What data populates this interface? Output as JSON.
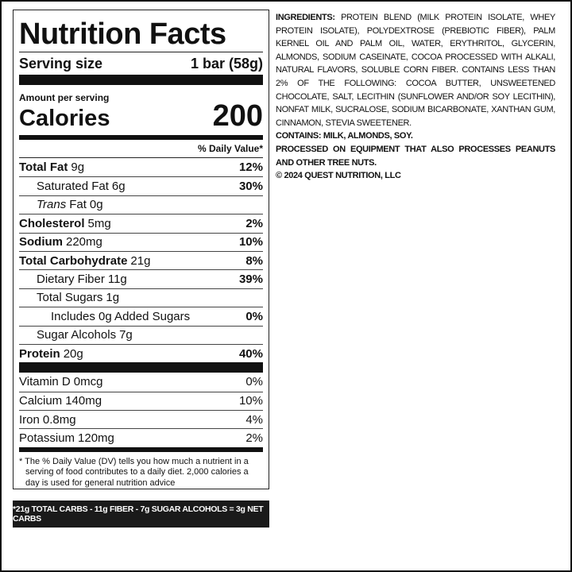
{
  "label": {
    "title": "Nutrition Facts",
    "serving_size_label": "Serving size",
    "serving_size": "1 bar (58g)",
    "amount_per_serving": "Amount per serving",
    "calories_label": "Calories",
    "calories": "200",
    "dv_header": "% Daily Value*",
    "nutrients": [
      {
        "name": "Total Fat",
        "amount": "9g",
        "dv": "12%"
      },
      {
        "name": "Saturated Fat",
        "amount": "6g",
        "dv": "30%"
      },
      {
        "prefix": "Trans",
        "name": "Fat",
        "amount": "0g"
      },
      {
        "name": "Cholesterol",
        "amount": "5mg",
        "dv": "2%"
      },
      {
        "name": "Sodium",
        "amount": "220mg",
        "dv": "10%"
      },
      {
        "name": "Total Carbohydrate",
        "amount": "21g",
        "dv": "8%"
      },
      {
        "name": "Dietary Fiber",
        "amount": "11g",
        "dv": "39%"
      },
      {
        "name": "Total Sugars",
        "amount": "1g"
      },
      {
        "name": "Includes 0g Added Sugars",
        "dv": "0%"
      },
      {
        "name": "Sugar Alcohols",
        "amount": "7g"
      },
      {
        "name": "Protein",
        "amount": "20g",
        "dv": "40%"
      }
    ],
    "vitamins": [
      {
        "name": "Vitamin D",
        "amount": "0mcg",
        "dv": "0%"
      },
      {
        "name": "Calcium",
        "amount": "140mg",
        "dv": "10%"
      },
      {
        "name": "Iron",
        "amount": "0.8mg",
        "dv": "4%"
      },
      {
        "name": "Potassium",
        "amount": "120mg",
        "dv": "2%"
      }
    ],
    "footnote": "* The % Daily Value (DV) tells you how much a nutrient in a serving of food contributes to a daily diet. 2,000 calories a day is used for general nutrition advice"
  },
  "net_carbs_note": "*21g TOTAL CARBS - 11g FIBER - 7g SUGAR ALCOHOLS = 3g NET CARBS",
  "ingredients": {
    "label": "INGREDIENTS:",
    "text": "PROTEIN BLEND (MILK PROTEIN ISOLATE, WHEY PROTEIN ISOLATE), POLYDEXTROSE (PREBIOTIC FIBER), PALM KERNEL OIL AND PALM OIL, WATER, ERYTHRITOL, GLYCERIN, ALMONDS, SODIUM CASEINATE, COCOA PROCESSED WITH ALKALI, NATURAL FLAVORS, SOLUBLE CORN FIBER. CONTAINS LESS THAN 2% OF THE FOLLOWING: COCOA BUTTER, UNSWEETENED CHOCOLATE, SALT, LECITHIN (SUNFLOWER AND/OR SOY LECITHIN), NONFAT MILK, SUCRALOSE, SODIUM BICARBONATE, XANTHAN GUM, CINNAMON, STEVIA SWEETENER."
  },
  "contains": "CONTAINS: MILK, ALMONDS, SOY.",
  "processed": "PROCESSED ON EQUIPMENT THAT ALSO PROCESSES PEANUTS AND OTHER TREE NUTS.",
  "copyright": "© 2024 QUEST NUTRITION, LLC"
}
